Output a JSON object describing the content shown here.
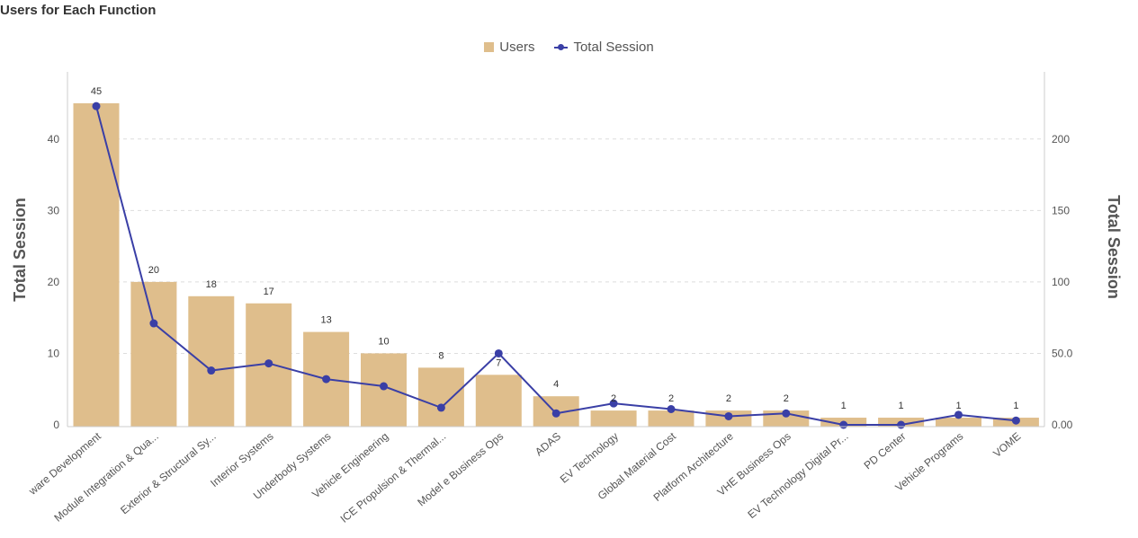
{
  "chart_data": {
    "type": "bar",
    "title": "Users for Each Function",
    "categories": [
      "ware Development",
      "Module Integration & Qua...",
      "Exterior & Structural Sy...",
      "Interior Systems",
      "Underbody Systems",
      "Vehicle Engineering",
      "ICE Propulsion & Thermal...",
      "Model e Business Ops",
      "ADAS",
      "EV Technology",
      "Global Material Cost",
      "Platform Architecture",
      "VHE Business Ops",
      "EV Technology Digital Pr...",
      "PD Center",
      "Vehicle Programs",
      "VOME"
    ],
    "series": [
      {
        "name": "Users",
        "type": "bar",
        "axis": "left",
        "color": "#dfbe8c",
        "values": [
          45,
          20,
          18,
          17,
          13,
          10,
          8,
          7,
          4,
          2,
          2,
          2,
          2,
          1,
          1,
          1,
          1
        ]
      },
      {
        "name": "Total Session",
        "type": "line",
        "axis": "right",
        "color": "#3a3fa6",
        "values": [
          223,
          71,
          38,
          43,
          32,
          27,
          12,
          50,
          8,
          15,
          11,
          6,
          8,
          0,
          0,
          7,
          3
        ]
      }
    ],
    "data_labels": [
      "45",
      "20",
      "18",
      "17",
      "13",
      "10",
      "8",
      "7",
      "4",
      "2",
      "2",
      "2",
      "2",
      "1",
      "1",
      "1",
      "1"
    ],
    "ylabel": "Total Session",
    "y2label": "Total Session",
    "ylim": [
      0,
      45
    ],
    "y2lim": [
      0,
      225
    ],
    "yticks": [
      0,
      10,
      20,
      30,
      40
    ],
    "ytick_labels": [
      "0",
      "10",
      "20",
      "30",
      "40"
    ],
    "y2ticks": [
      0,
      50,
      100,
      150,
      200
    ],
    "y2tick_labels": [
      "0.00",
      "50.0",
      "100",
      "150",
      "200"
    ],
    "grid": true,
    "legend": "top-center"
  }
}
